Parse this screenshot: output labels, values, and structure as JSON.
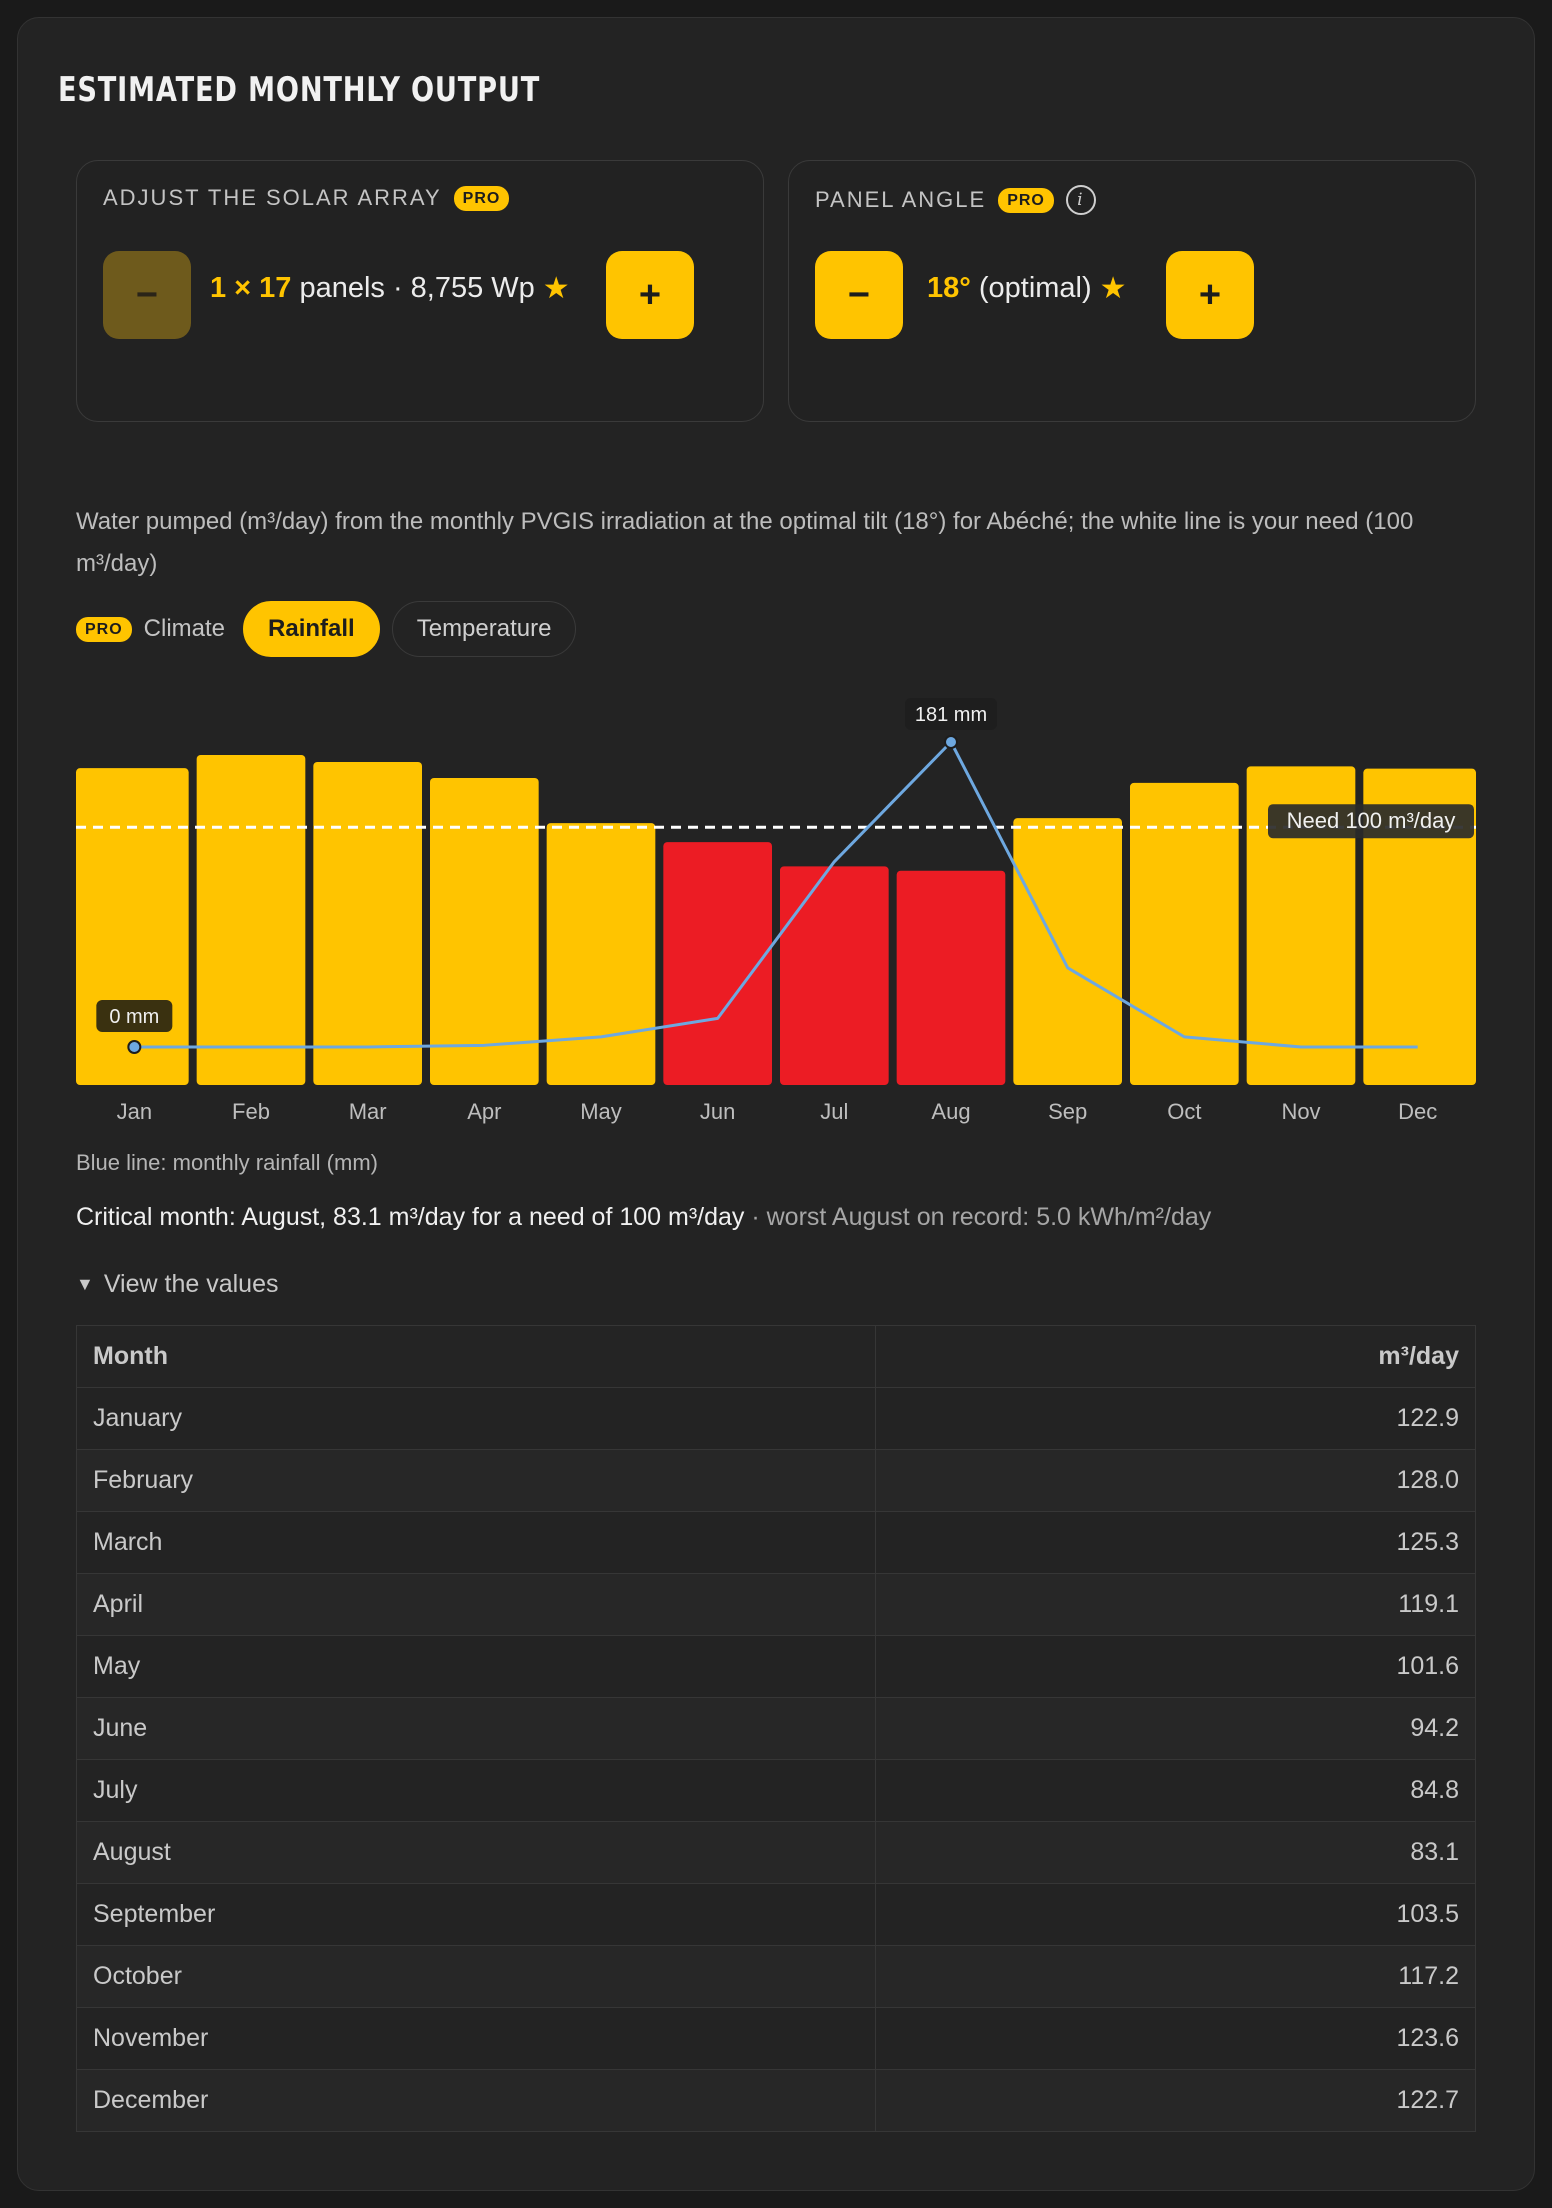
{
  "title": "ESTIMATED MONTHLY OUTPUT",
  "array_panel": {
    "label": "ADJUST THE SOLAR ARRAY",
    "badge": "PRO",
    "minus": "−",
    "plus": "+",
    "value_highlight": "1 × 17",
    "value_text": "panels · 8,755 Wp",
    "star": "★"
  },
  "angle_panel": {
    "label": "PANEL ANGLE",
    "badge": "PRO",
    "info": "i",
    "minus": "−",
    "plus": "+",
    "value_highlight": "18°",
    "value_text": "(optimal)",
    "star": "★"
  },
  "description": "Water pumped (m³/day) from the monthly PVGIS irradiation at the optimal tilt (18°) for Abéché; the white line is your need (100 m³/day)",
  "climate": {
    "badge": "PRO",
    "label": "Climate",
    "options": [
      "Rainfall",
      "Temperature"
    ],
    "selected": "Rainfall"
  },
  "chart_data": {
    "type": "bar",
    "categories": [
      "Jan",
      "Feb",
      "Mar",
      "Apr",
      "May",
      "Jun",
      "Jul",
      "Aug",
      "Sep",
      "Oct",
      "Nov",
      "Dec"
    ],
    "series": [
      {
        "values": [
          122.9,
          128.0,
          125.3,
          119.1,
          101.6,
          94.2,
          84.8,
          83.1,
          103.5,
          117.2,
          123.6,
          122.7
        ]
      },
      {
        "type": "line",
        "values": [
          0,
          0,
          0,
          1,
          6,
          17,
          110,
          181,
          47,
          6,
          0,
          0
        ]
      }
    ],
    "need_line": {
      "value": 100,
      "label": "Need 100 m³/day"
    },
    "line_labels": {
      "min": "0 mm",
      "max": "181 mm"
    },
    "colors": {
      "ok": "#ffc400",
      "deficit": "#ec1c24",
      "rain": "#6ea8e0",
      "need": "#ffffff"
    },
    "ylim": [
      0,
      128.0
    ],
    "rain_ylim": [
      0,
      181
    ]
  },
  "legend_note": "Blue line: monthly rainfall (mm)",
  "critical": {
    "main": "Critical month: August, 83.1 m³/day for a need of 100 m³/day",
    "muted": " · worst August on record: 5.0 kWh/m²/day"
  },
  "view_values": {
    "toggle": "▼",
    "label": "View the values"
  },
  "table": {
    "headers": [
      "Month",
      "m³/day"
    ],
    "rows": [
      [
        "January",
        "122.9"
      ],
      [
        "February",
        "128.0"
      ],
      [
        "March",
        "125.3"
      ],
      [
        "April",
        "119.1"
      ],
      [
        "May",
        "101.6"
      ],
      [
        "June",
        "94.2"
      ],
      [
        "July",
        "84.8"
      ],
      [
        "August",
        "83.1"
      ],
      [
        "September",
        "103.5"
      ],
      [
        "October",
        "117.2"
      ],
      [
        "November",
        "123.6"
      ],
      [
        "December",
        "122.7"
      ]
    ]
  }
}
